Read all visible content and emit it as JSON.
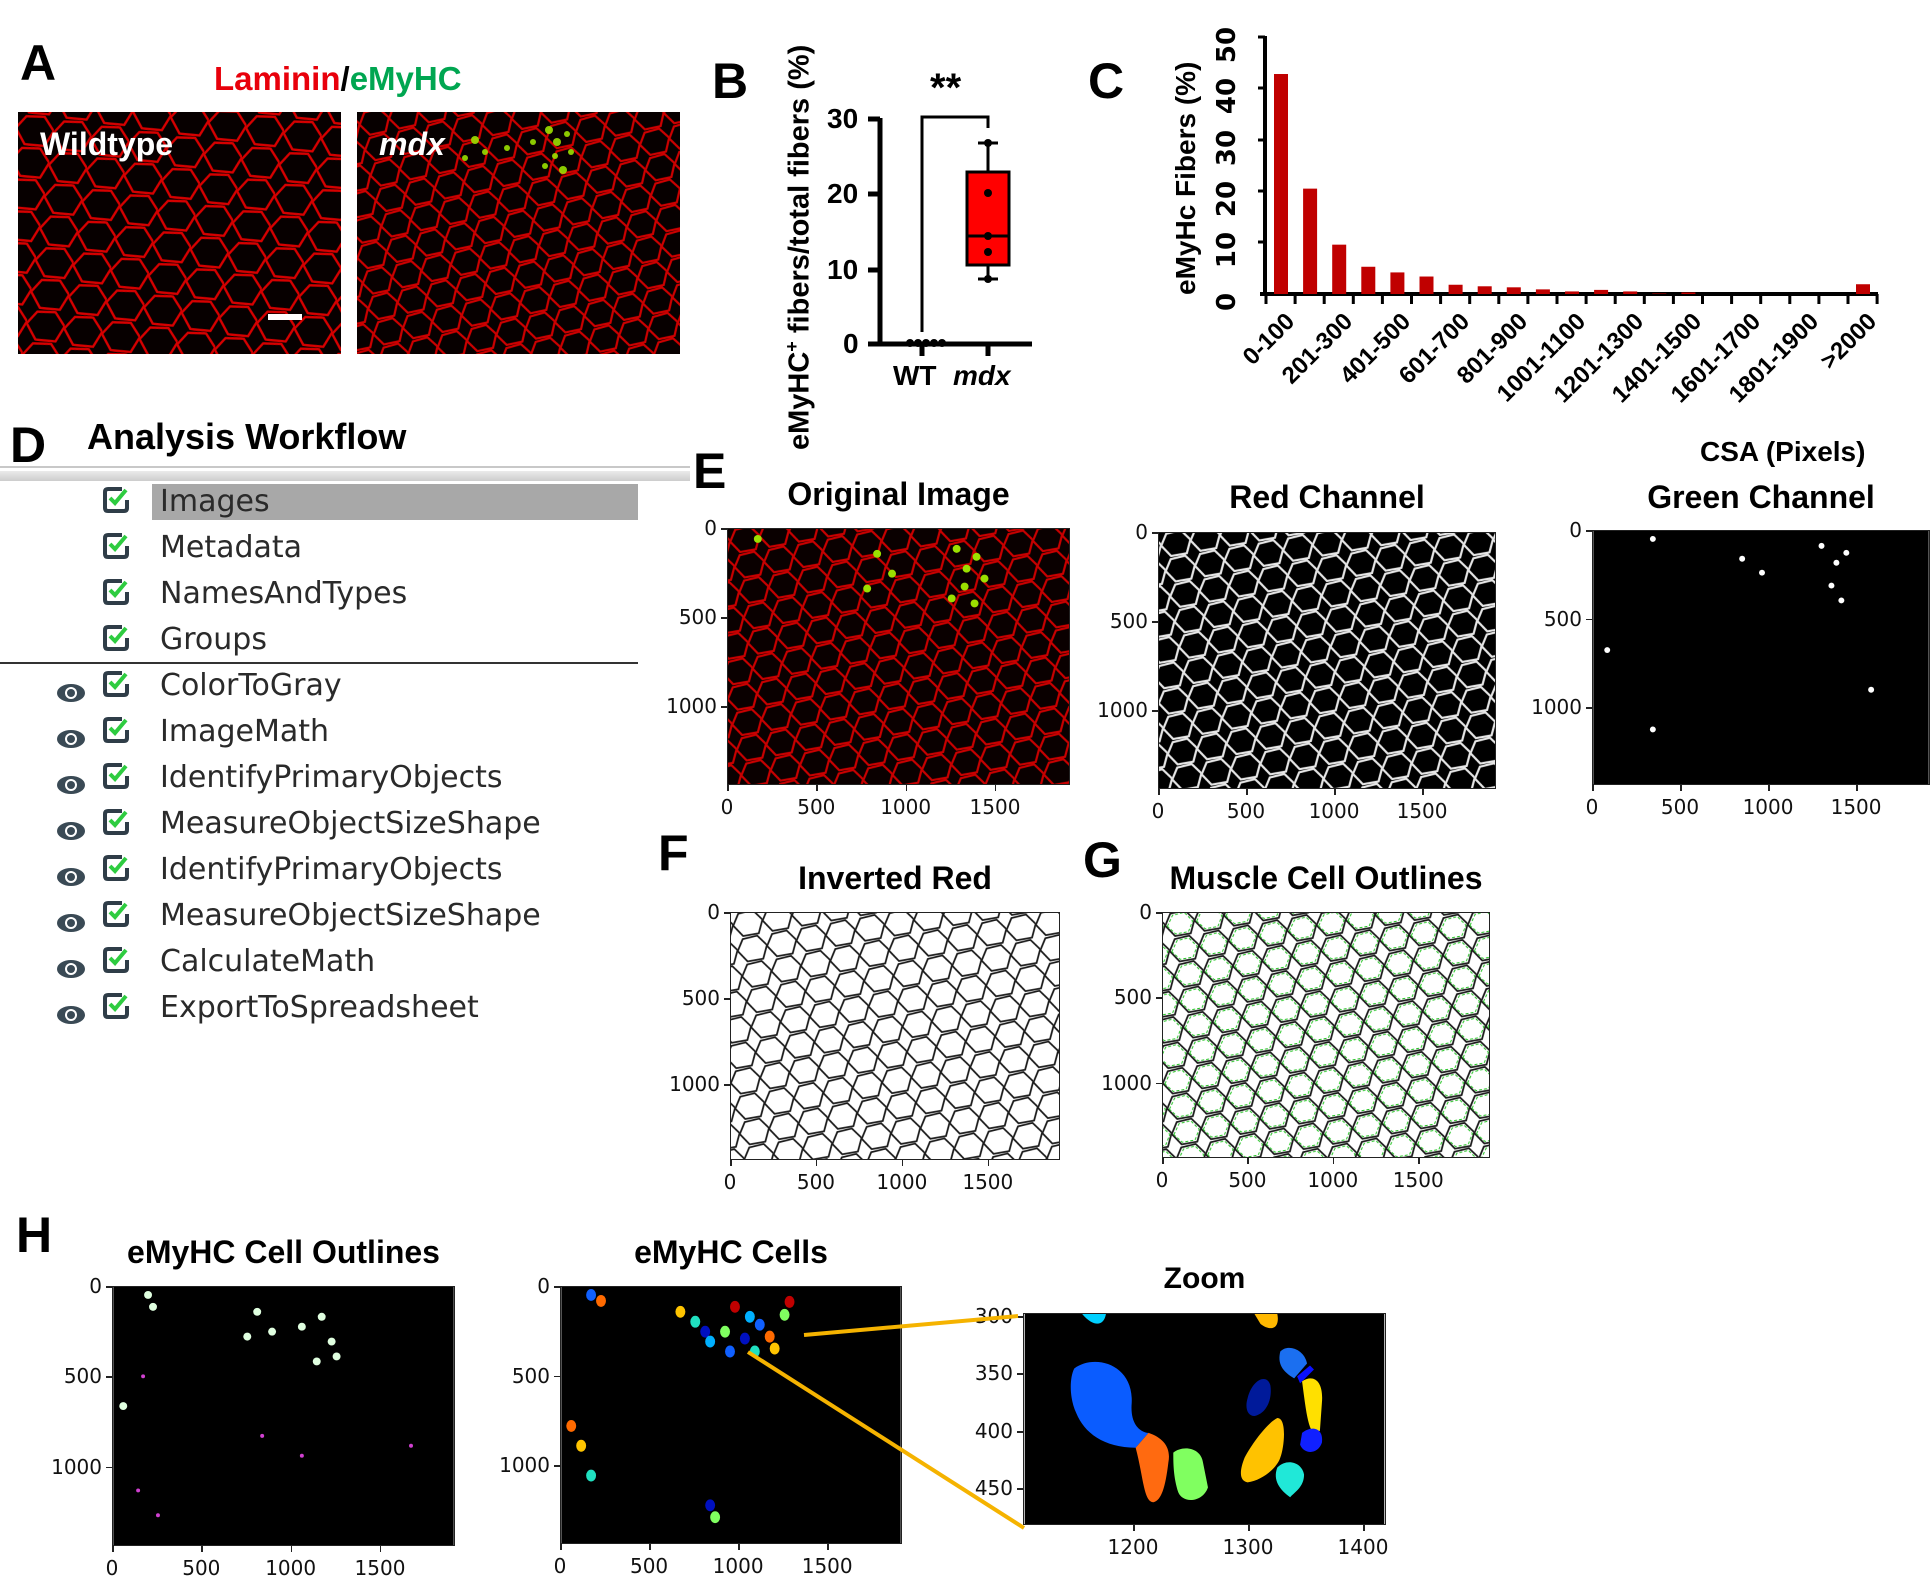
{
  "panel_a": {
    "letter": "A",
    "title_red": "Laminin",
    "title_sep": "/",
    "title_green": "eMyHC",
    "images": [
      {
        "label": "Wildtype",
        "italic": false
      },
      {
        "label": "mdx",
        "italic": true
      }
    ],
    "colors": {
      "laminin": "#e8000b",
      "emyhc": "#00a651"
    }
  },
  "panel_b": {
    "letter": "B",
    "significance": "**"
  },
  "panel_c": {
    "letter": "C"
  },
  "panel_d": {
    "letter": "D",
    "title": "Analysis Workflow",
    "input_modules": [
      {
        "label": "Images",
        "selected": true
      },
      {
        "label": "Metadata",
        "selected": false
      },
      {
        "label": "NamesAndTypes",
        "selected": false
      },
      {
        "label": "Groups",
        "selected": false
      }
    ],
    "analysis_modules": [
      {
        "label": "ColorToGray"
      },
      {
        "label": "ImageMath"
      },
      {
        "label": "IdentifyPrimaryObjects"
      },
      {
        "label": "MeasureObjectSizeShape"
      },
      {
        "label": "IdentifyPrimaryObjects"
      },
      {
        "label": "MeasureObjectSizeShape"
      },
      {
        "label": "CalculateMath"
      },
      {
        "label": "ExportToSpreadsheet"
      }
    ],
    "icons": {
      "visibility": "eye-icon",
      "enabled": "checkbox-checked-icon"
    },
    "check_color": "#2ecc40"
  },
  "panel_e": {
    "letter": "E",
    "plots": [
      {
        "title": "Original Image",
        "yticks": [
          "0",
          "500",
          "1000"
        ],
        "xticks": [
          "0",
          "500",
          "1000",
          "1500"
        ]
      },
      {
        "title": "Red Channel",
        "yticks": [
          "0",
          "500",
          "1000"
        ],
        "xticks": [
          "0",
          "500",
          "1000",
          "1500"
        ]
      },
      {
        "title": "Green Channel",
        "yticks": [
          "0",
          "500",
          "1000"
        ],
        "xticks": [
          "0",
          "500",
          "1000",
          "1500"
        ]
      }
    ]
  },
  "panel_f": {
    "letter": "F",
    "title": "Inverted Red",
    "yticks": [
      "0",
      "500",
      "1000"
    ],
    "xticks": [
      "0",
      "500",
      "1000",
      "1500"
    ]
  },
  "panel_g": {
    "letter": "G",
    "title": "Muscle Cell Outlines",
    "yticks": [
      "0",
      "500",
      "1000"
    ],
    "xticks": [
      "0",
      "500",
      "1000",
      "1500"
    ]
  },
  "panel_h": {
    "letter": "H",
    "plots": [
      {
        "title": "eMyHC Cell Outlines",
        "yticks": [
          "0",
          "500",
          "1000"
        ],
        "xticks": [
          "0",
          "500",
          "1000",
          "1500"
        ]
      },
      {
        "title": "eMyHC Cells",
        "yticks": [
          "0",
          "500",
          "1000"
        ],
        "xticks": [
          "0",
          "500",
          "1000",
          "1500"
        ]
      },
      {
        "title": "Zoom",
        "yticks": [
          "300",
          "350",
          "400",
          "450"
        ],
        "xticks": [
          "1200",
          "1300",
          "1400"
        ]
      }
    ],
    "zoom_line_color": "#f5b300"
  },
  "chart_data": [
    {
      "panel": "B",
      "type": "box",
      "title": "",
      "xlabel": "",
      "ylabel": "eMyHC+ fibers/total fibers (%)",
      "ylabel_main": "eMyHC",
      "ylabel_sup": "+",
      "ylabel_rest": " fibers/total fibers (%)",
      "categories": [
        "WT",
        "mdx"
      ],
      "category_italic": [
        false,
        true
      ],
      "ylim": [
        0,
        30
      ],
      "yticks": [
        "0",
        "10",
        "20",
        "30"
      ],
      "series": [
        {
          "name": "WT",
          "points": [
            0,
            0,
            0,
            0,
            0
          ],
          "min": 0,
          "q1": 0,
          "median": 0,
          "q3": 0,
          "max": 0,
          "color": "#ffffff"
        },
        {
          "name": "mdx",
          "points": [
            8.5,
            12.1,
            14.3,
            20.0,
            26.7
          ],
          "min": 8.5,
          "q1": 10.5,
          "median": 14.3,
          "q3": 23.3,
          "max": 26.7,
          "color": "#ff0000"
        }
      ],
      "annotations": [
        {
          "text": "**",
          "between": [
            "WT",
            "mdx"
          ],
          "y": 30
        }
      ]
    },
    {
      "panel": "C",
      "type": "bar",
      "title": "",
      "xlabel": "CSA (Pixels)",
      "ylabel": "eMyHc Fibers (%)",
      "ylim": [
        0,
        50
      ],
      "yticks": [
        "0",
        "10",
        "20",
        "30",
        "40",
        "50"
      ],
      "categories": [
        "0-100",
        "101-200",
        "201-300",
        "301-400",
        "401-500",
        "501-600",
        "601-700",
        "701-800",
        "801-900",
        "901-1000",
        "1001-1100",
        "1101-1200",
        "1201-1300",
        "1301-1400",
        "1401-1500",
        "1501-1600",
        "1601-1700",
        "1701-1800",
        "1801-1900",
        "1901-2000",
        ">2000"
      ],
      "visible_tick_labels": [
        "0-100",
        "201-300",
        "401-500",
        "601-700",
        "801-900",
        "1001-1100",
        "1201-1300",
        "1401-1500",
        "1601-1700",
        "1801-1900",
        ">2000"
      ],
      "values": [
        42.8,
        20.5,
        9.6,
        5.3,
        4.2,
        3.4,
        1.8,
        1.5,
        1.3,
        0.9,
        0.5,
        0.8,
        0.5,
        0.1,
        0.3,
        0,
        0,
        0,
        0,
        0,
        1.9
      ],
      "color": "#c00000",
      "grid": false,
      "legend": null
    }
  ]
}
